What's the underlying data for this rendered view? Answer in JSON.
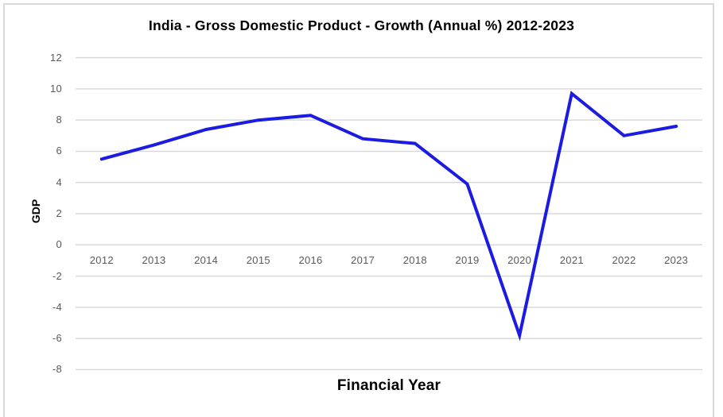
{
  "chart_data": {
    "type": "line",
    "title": "India - Gross Domestic Product - Growth (Annual %) 2012-2023",
    "xlabel": "Financial Year",
    "ylabel": "GDP",
    "categories": [
      "2012",
      "2013",
      "2014",
      "2015",
      "2016",
      "2017",
      "2018",
      "2019",
      "2020",
      "2021",
      "2022",
      "2023"
    ],
    "values": [
      5.5,
      6.4,
      7.4,
      8.0,
      8.3,
      6.8,
      6.5,
      3.9,
      -5.8,
      9.7,
      7.0,
      7.6
    ],
    "ylim": [
      -8,
      12
    ],
    "yticks": [
      12,
      10,
      8,
      6,
      4,
      2,
      0,
      -2,
      -4,
      -6,
      -8
    ],
    "grid": true,
    "legend": "none",
    "markers": "none",
    "line_width": 4,
    "colors": {
      "line": "#1b1be1",
      "gridline": "#d9d9d9",
      "tick_label": "#595959",
      "title": "#000000",
      "frame_border": "#d9d9d9",
      "background": "#ffffff"
    }
  }
}
